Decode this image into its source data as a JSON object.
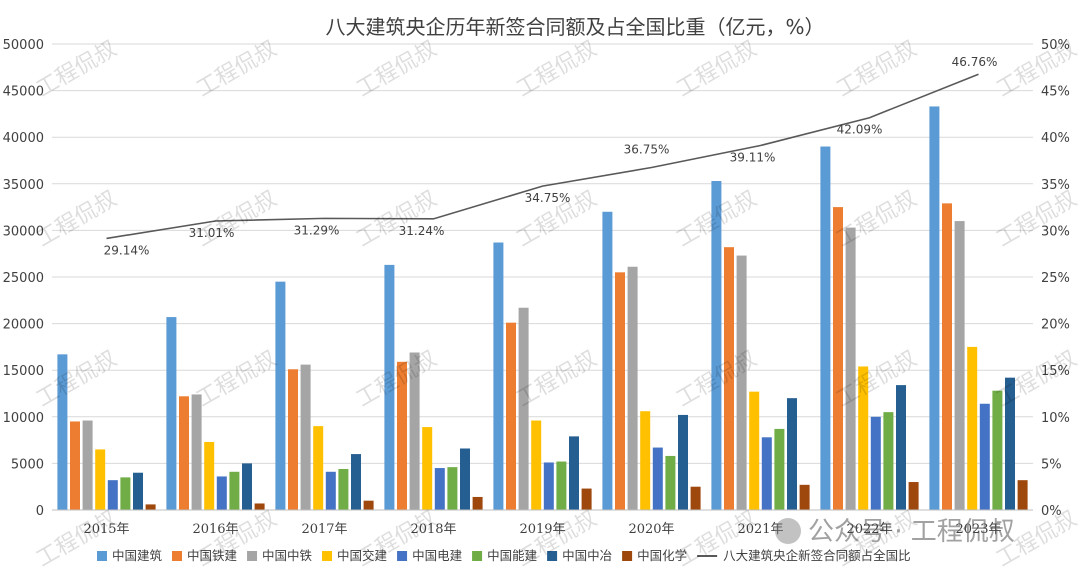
{
  "chart_data": {
    "type": "bar",
    "title": "八大建筑央企历年新签合同额及占全国比重（亿元，%）",
    "categories": [
      "2015年",
      "2016年",
      "2017年",
      "2018年",
      "2019年",
      "2020年",
      "2021年",
      "2022年",
      "2023年"
    ],
    "ylim": [
      0,
      50000
    ],
    "y_ticks": [
      "0",
      "5000",
      "10000",
      "15000",
      "20000",
      "25000",
      "30000",
      "35000",
      "40000",
      "45000",
      "50000"
    ],
    "y2lim": [
      0,
      50
    ],
    "y2_ticks": [
      "0%",
      "5%",
      "10%",
      "15%",
      "20%",
      "25%",
      "30%",
      "35%",
      "40%",
      "45%",
      "50%"
    ],
    "grid": true,
    "legend_position": "bottom",
    "series": [
      {
        "name": "中国建筑",
        "color": "#5B9BD5",
        "values": [
          16700,
          20700,
          24500,
          26300,
          28700,
          32000,
          35300,
          39000,
          43300
        ]
      },
      {
        "name": "中国铁建",
        "color": "#ED7D31",
        "values": [
          9500,
          12200,
          15100,
          15900,
          20100,
          25500,
          28200,
          32500,
          32900
        ]
      },
      {
        "name": "中国中铁",
        "color": "#A5A5A5",
        "values": [
          9600,
          12400,
          15600,
          16900,
          21700,
          26100,
          27300,
          30300,
          31000
        ]
      },
      {
        "name": "中国交建",
        "color": "#FFC000",
        "values": [
          6500,
          7300,
          9000,
          8900,
          9600,
          10600,
          12700,
          15400,
          17500
        ]
      },
      {
        "name": "中国电建",
        "color": "#4472C4",
        "values": [
          3200,
          3600,
          4100,
          4500,
          5100,
          6700,
          7800,
          10000,
          11400
        ]
      },
      {
        "name": "中国能建",
        "color": "#70AD47",
        "values": [
          3500,
          4100,
          4400,
          4600,
          5200,
          5800,
          8700,
          10500,
          12800
        ]
      },
      {
        "name": "中国中冶",
        "color": "#255E91",
        "values": [
          4000,
          5000,
          6000,
          6600,
          7900,
          10200,
          12000,
          13400,
          14200
        ]
      },
      {
        "name": "中国化学",
        "color": "#9E480E",
        "values": [
          600,
          700,
          1000,
          1400,
          2300,
          2500,
          2700,
          3000,
          3200
        ]
      }
    ],
    "line_series": {
      "name": "八大建筑央企新签合同额占全国比",
      "color": "#595959",
      "values": [
        29.14,
        31.01,
        31.29,
        31.24,
        34.75,
        36.75,
        39.11,
        42.09,
        46.76
      ],
      "labels": [
        "29.14%",
        "31.01%",
        "31.29%",
        "31.24%",
        "34.75%",
        "36.75%",
        "39.11%",
        "42.09%",
        "46.76%"
      ]
    }
  },
  "watermark": "工程侃叔",
  "brand": "公众号 · 工程侃叔"
}
